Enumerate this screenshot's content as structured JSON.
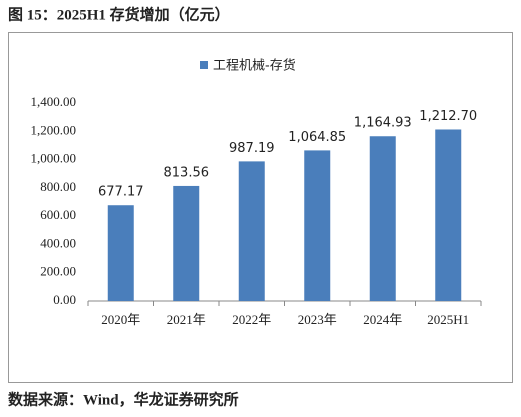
{
  "chart_data": {
    "type": "bar",
    "title": "图 15：2025H1 存货增加（亿元）",
    "source": "数据来源：Wind，华龙证券研究所",
    "legend": "top",
    "categories": [
      "2020年",
      "2021年",
      "2022年",
      "2023年",
      "2024年",
      "2025H1"
    ],
    "series": [
      {
        "name": "工程机械-存货",
        "color": "#4a7ebb",
        "values": [
          677.17,
          813.56,
          987.19,
          1064.85,
          1164.93,
          1212.7
        ],
        "value_labels": [
          "677.17",
          "813.56",
          "987.19",
          "1,064.85",
          "1,164.93",
          "1,212.70"
        ]
      }
    ],
    "ylim": [
      0,
      1400
    ],
    "yticks": [
      {
        "value": 0,
        "label": "0.00"
      },
      {
        "value": 200,
        "label": "200.00"
      },
      {
        "value": 400,
        "label": "400.00"
      },
      {
        "value": 600,
        "label": "600.00"
      },
      {
        "value": 800,
        "label": "800.00"
      },
      {
        "value": 1000,
        "label": "1,000.00"
      },
      {
        "value": 1200,
        "label": "1,200.00"
      },
      {
        "value": 1400,
        "label": "1,400.00"
      }
    ],
    "grid": false
  }
}
